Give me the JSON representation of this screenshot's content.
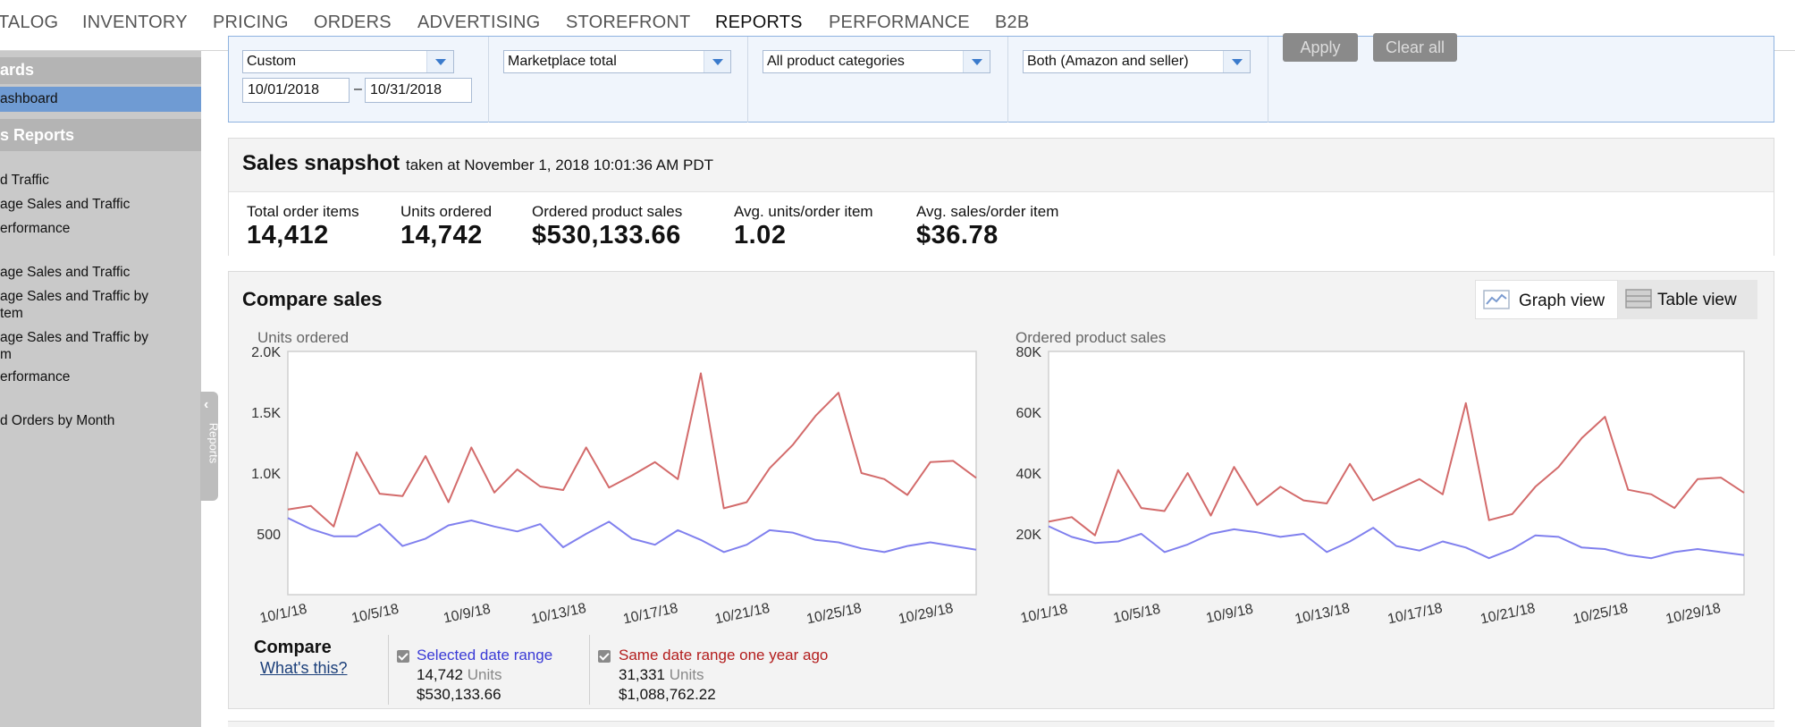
{
  "nav": {
    "tabs": [
      "TALOG",
      "INVENTORY",
      "PRICING",
      "ORDERS",
      "ADVERTISING",
      "STOREFRONT",
      "REPORTS",
      "PERFORMANCE",
      "B2B"
    ],
    "active": "REPORTS"
  },
  "sidebar": {
    "section1_heading": "ards",
    "selected_item": "ashboard",
    "section2_heading": "s Reports",
    "items": [
      "d Traffic",
      "age Sales and Traffic",
      "erformance",
      "age Sales and Traffic",
      "age Sales and Traffic by",
      "tem",
      "age Sales and Traffic by",
      "m",
      "erformance",
      "d Orders by Month"
    ],
    "handle_label": "Reports"
  },
  "filters": {
    "date_preset": "Custom",
    "date_from": "10/01/2018",
    "date_sep": "–",
    "date_to": "10/31/2018",
    "marketplace": "Marketplace total",
    "category": "All product categories",
    "fulfillment": "Both (Amazon and seller)",
    "apply_label": "Apply",
    "clear_label": "Clear all"
  },
  "snapshot": {
    "title": "Sales snapshot",
    "taken_at": "taken at November 1, 2018 10:01:36 AM PDT",
    "metrics": [
      {
        "label": "Total order items",
        "value": "14,412"
      },
      {
        "label": "Units ordered",
        "value": "14,742"
      },
      {
        "label": "Ordered product sales",
        "value": "$530,133.66"
      },
      {
        "label": "Avg. units/order item",
        "value": "1.02"
      },
      {
        "label": "Avg. sales/order item",
        "value": "$36.78"
      }
    ]
  },
  "compare": {
    "title": "Compare sales",
    "graph_view_label": "Graph view",
    "table_view_label": "Table view",
    "legend": {
      "title": "Compare",
      "help_link": "What's this?",
      "current": {
        "name": "Selected date range",
        "units": "14,742",
        "units_label": "Units",
        "sales": "$530,133.66",
        "color": "#3a3ad6"
      },
      "previous": {
        "name": "Same date range one year ago",
        "units": "31,331",
        "units_label": "Units",
        "sales": "$1,088,762.22",
        "color": "#b31d1d"
      }
    }
  },
  "chart_data": [
    {
      "type": "line",
      "title": "Units ordered",
      "x": [
        "10/1/18",
        "10/2/18",
        "10/3/18",
        "10/4/18",
        "10/5/18",
        "10/6/18",
        "10/7/18",
        "10/8/18",
        "10/9/18",
        "10/10/18",
        "10/11/18",
        "10/12/18",
        "10/13/18",
        "10/14/18",
        "10/15/18",
        "10/16/18",
        "10/17/18",
        "10/18/18",
        "10/19/18",
        "10/20/18",
        "10/21/18",
        "10/22/18",
        "10/23/18",
        "10/24/18",
        "10/25/18",
        "10/26/18",
        "10/27/18",
        "10/28/18",
        "10/29/18",
        "10/30/18",
        "10/31/18"
      ],
      "x_tick_labels": [
        "10/1/18",
        "10/5/18",
        "10/9/18",
        "10/13/18",
        "10/17/18",
        "10/21/18",
        "10/25/18",
        "10/29/18"
      ],
      "y_tick_labels": [
        "500",
        "1.0K",
        "1.5K",
        "2.0K"
      ],
      "ylim": [
        0,
        2000
      ],
      "series": [
        {
          "color": "#d36b6b",
          "values": [
            700,
            730,
            560,
            1170,
            830,
            810,
            1140,
            760,
            1210,
            840,
            1030,
            890,
            860,
            1210,
            880,
            980,
            1090,
            950,
            1820,
            710,
            760,
            1040,
            1230,
            1470,
            1660,
            1000,
            950,
            820,
            1090,
            1100,
            960
          ]
        },
        {
          "color": "#8080ee",
          "values": [
            630,
            540,
            480,
            480,
            580,
            400,
            460,
            570,
            610,
            560,
            520,
            580,
            390,
            500,
            600,
            460,
            410,
            530,
            450,
            350,
            410,
            530,
            510,
            450,
            430,
            380,
            350,
            400,
            430,
            400,
            370
          ]
        }
      ]
    },
    {
      "type": "line",
      "title": "Ordered product sales",
      "x": [
        "10/1/18",
        "10/2/18",
        "10/3/18",
        "10/4/18",
        "10/5/18",
        "10/6/18",
        "10/7/18",
        "10/8/18",
        "10/9/18",
        "10/10/18",
        "10/11/18",
        "10/12/18",
        "10/13/18",
        "10/14/18",
        "10/15/18",
        "10/16/18",
        "10/17/18",
        "10/18/18",
        "10/19/18",
        "10/20/18",
        "10/21/18",
        "10/22/18",
        "10/23/18",
        "10/24/18",
        "10/25/18",
        "10/26/18",
        "10/27/18",
        "10/28/18",
        "10/29/18",
        "10/30/18",
        "10/31/18"
      ],
      "x_tick_labels": [
        "10/1/18",
        "10/5/18",
        "10/9/18",
        "10/13/18",
        "10/17/18",
        "10/21/18",
        "10/25/18",
        "10/29/18"
      ],
      "y_tick_labels": [
        "20K",
        "40K",
        "60K",
        "80K"
      ],
      "ylim": [
        0,
        80000
      ],
      "series": [
        {
          "color": "#d36b6b",
          "values": [
            24000,
            25500,
            19500,
            41000,
            28500,
            27500,
            40000,
            26000,
            42000,
            29500,
            35500,
            31000,
            30000,
            43000,
            31000,
            34500,
            38000,
            33000,
            63000,
            24500,
            26500,
            35500,
            42000,
            51500,
            58500,
            34500,
            33000,
            28500,
            38000,
            38500,
            33500
          ]
        },
        {
          "color": "#8080ee",
          "values": [
            22500,
            19000,
            17000,
            17500,
            20000,
            14000,
            16500,
            20000,
            21500,
            20500,
            19000,
            20000,
            14000,
            17500,
            22000,
            16000,
            14500,
            17500,
            15500,
            12000,
            15000,
            19500,
            19000,
            15500,
            15000,
            13000,
            12000,
            14000,
            15000,
            14000,
            13000
          ]
        }
      ]
    }
  ]
}
